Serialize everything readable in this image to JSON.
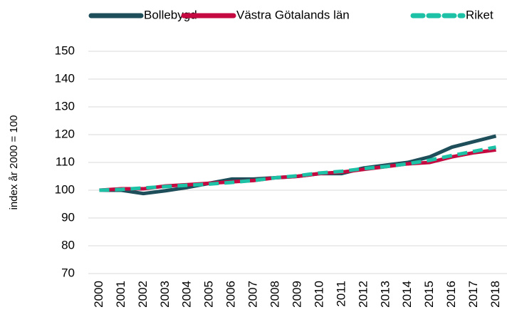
{
  "chart_data": {
    "type": "line",
    "y_label": "index år 2000 = 100",
    "categories": [
      "2000",
      "2001",
      "2002",
      "2003",
      "2004",
      "2005",
      "2006",
      "2007",
      "2008",
      "2009",
      "2010",
      "2011",
      "2012",
      "2013",
      "2014",
      "2015",
      "2016",
      "2017",
      "2018"
    ],
    "series": [
      {
        "name": "Bollebygd",
        "color": "#1d4e5a",
        "dashed": false,
        "values": [
          100,
          100,
          98.8,
          99.8,
          101,
          102.5,
          104,
          104,
          104.5,
          105,
          106,
          106,
          108,
          109,
          110,
          112,
          115.5,
          117.5,
          119.5
        ]
      },
      {
        "name": "Västra Götalands län",
        "color": "#c40a40",
        "dashed": false,
        "values": [
          100,
          100.5,
          100.5,
          101.5,
          102,
          102.5,
          103,
          103.5,
          104.5,
          105,
          106,
          106.5,
          107.5,
          108.5,
          109.5,
          110,
          112,
          113.5,
          114.5
        ]
      },
      {
        "name": "Riket",
        "color": "#1cc1a6",
        "dashed": true,
        "values": [
          100,
          100.3,
          100.8,
          101.3,
          101.8,
          102.2,
          102.8,
          103.5,
          104.5,
          105.2,
          106.2,
          106.8,
          107.8,
          108.5,
          109.5,
          110.8,
          112.5,
          114,
          115.5
        ]
      }
    ],
    "ylim": [
      70,
      150
    ],
    "yticks": [
      70,
      80,
      90,
      100,
      110,
      120,
      130,
      140,
      150
    ],
    "grid": true,
    "legend": "top"
  }
}
